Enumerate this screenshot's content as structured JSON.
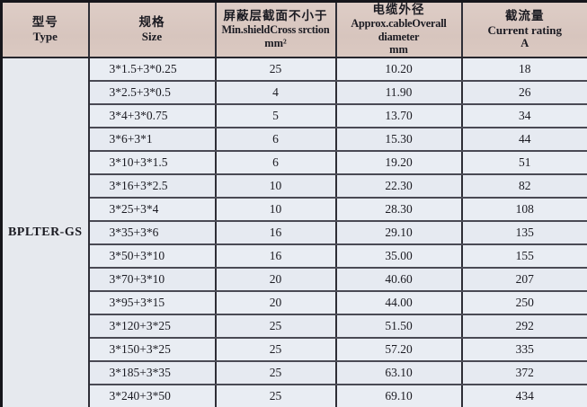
{
  "table": {
    "type_label": "BPLTER-GS",
    "headers": {
      "type": {
        "zh": "型号",
        "en": "Type"
      },
      "size": {
        "zh": "规格",
        "en": "Size"
      },
      "shield": {
        "zh": "屏蔽层截面不小于",
        "en": "Min.shieldCross srction",
        "unit": "mm²"
      },
      "diameter": {
        "zh": "电缆外径",
        "en": "Approx.cableOverall",
        "en2": "diameter",
        "unit": "mm"
      },
      "rating": {
        "zh": "截流量",
        "en": "Current rating",
        "unit": "A"
      }
    },
    "rows": [
      {
        "size": "3*1.5+3*0.25",
        "shield": "25",
        "diameter": "10.20",
        "rating": "18"
      },
      {
        "size": "3*2.5+3*0.5",
        "shield": "4",
        "diameter": "11.90",
        "rating": "26"
      },
      {
        "size": "3*4+3*0.75",
        "shield": "5",
        "diameter": "13.70",
        "rating": "34"
      },
      {
        "size": "3*6+3*1",
        "shield": "6",
        "diameter": "15.30",
        "rating": "44"
      },
      {
        "size": "3*10+3*1.5",
        "shield": "6",
        "diameter": "19.20",
        "rating": "51"
      },
      {
        "size": "3*16+3*2.5",
        "shield": "10",
        "diameter": "22.30",
        "rating": "82"
      },
      {
        "size": "3*25+3*4",
        "shield": "10",
        "diameter": "28.30",
        "rating": "108"
      },
      {
        "size": "3*35+3*6",
        "shield": "16",
        "diameter": "29.10",
        "rating": "135"
      },
      {
        "size": "3*50+3*10",
        "shield": "16",
        "diameter": "35.00",
        "rating": "155"
      },
      {
        "size": "3*70+3*10",
        "shield": "20",
        "diameter": "40.60",
        "rating": "207"
      },
      {
        "size": "3*95+3*15",
        "shield": "20",
        "diameter": "44.00",
        "rating": "250"
      },
      {
        "size": "3*120+3*25",
        "shield": "25",
        "diameter": "51.50",
        "rating": "292"
      },
      {
        "size": "3*150+3*25",
        "shield": "25",
        "diameter": "57.20",
        "rating": "335"
      },
      {
        "size": "3*185+3*35",
        "shield": "25",
        "diameter": "63.10",
        "rating": "372"
      },
      {
        "size": "3*240+3*50",
        "shield": "25",
        "diameter": "69.10",
        "rating": "434"
      }
    ],
    "colors": {
      "header_bg": "#d9c7c0",
      "body_bg": "#e9edf3",
      "outer_border": "#16161b",
      "inner_border_vertical": "#2e2e36",
      "inner_border_horizontal": "#4a4a54"
    }
  }
}
